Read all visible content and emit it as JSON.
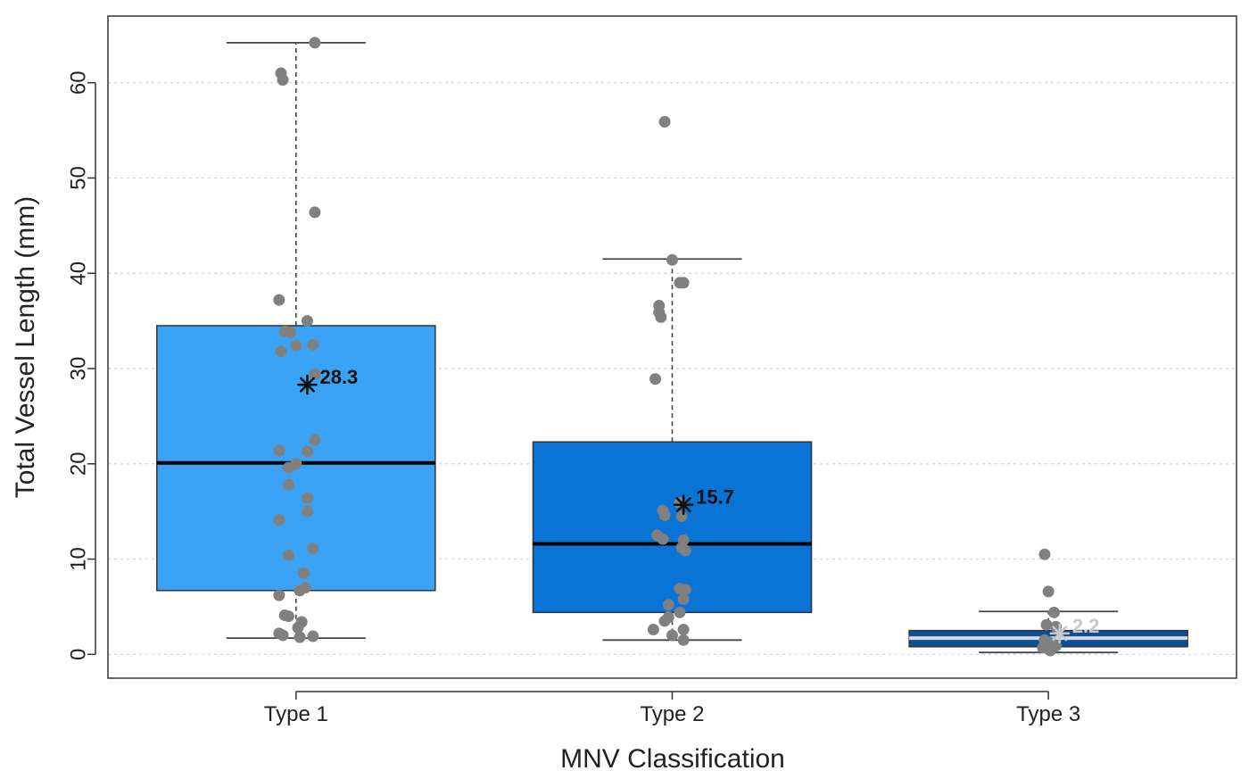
{
  "chart_data": {
    "type": "boxplot",
    "xlabel": "MNV Classification",
    "ylabel": "Total Vessel Length (mm)",
    "ylim": [
      -2.5,
      67
    ],
    "yticks": [
      0,
      10,
      20,
      30,
      40,
      50,
      60
    ],
    "grid": "horizontal dotted",
    "categories": [
      "Type 1",
      "Type 2",
      "Type 3"
    ],
    "colors": {
      "box_fills": [
        "#3aa3f5",
        "#0a73d6",
        "#0a4f98"
      ],
      "points": "#808080",
      "frame": "#333333",
      "grid": "#d4d4d4"
    },
    "boxes": [
      {
        "name": "Type 1",
        "whisker_low": 1.7,
        "q1": 6.7,
        "median": 20.1,
        "q3": 34.5,
        "whisker_high": 64.2,
        "mean": 28.3,
        "mean_label": "28.3",
        "mean_color": "#111111",
        "points": [
          {
            "dx": 0.05,
            "y": 64.2
          },
          {
            "dx": -0.04,
            "y": 61.0
          },
          {
            "dx": -0.035,
            "y": 60.3
          },
          {
            "dx": 0.05,
            "y": 46.4
          },
          {
            "dx": -0.045,
            "y": 37.2
          },
          {
            "dx": 0.03,
            "y": 35.0
          },
          {
            "dx": -0.03,
            "y": 33.9
          },
          {
            "dx": -0.015,
            "y": 33.8
          },
          {
            "dx": 0.0,
            "y": 32.4
          },
          {
            "dx": 0.045,
            "y": 32.5
          },
          {
            "dx": -0.04,
            "y": 31.8
          },
          {
            "dx": 0.05,
            "y": 29.4
          },
          {
            "dx": 0.05,
            "y": 22.5
          },
          {
            "dx": -0.045,
            "y": 21.4
          },
          {
            "dx": 0.03,
            "y": 21.3
          },
          {
            "dx": 0.0,
            "y": 20.0
          },
          {
            "dx": -0.02,
            "y": 19.6
          },
          {
            "dx": -0.02,
            "y": 17.8
          },
          {
            "dx": 0.03,
            "y": 16.4
          },
          {
            "dx": 0.03,
            "y": 15.0
          },
          {
            "dx": -0.045,
            "y": 14.1
          },
          {
            "dx": 0.045,
            "y": 11.1
          },
          {
            "dx": -0.02,
            "y": 10.4
          },
          {
            "dx": 0.02,
            "y": 8.5
          },
          {
            "dx": 0.025,
            "y": 7.0
          },
          {
            "dx": 0.01,
            "y": 6.7
          },
          {
            "dx": -0.045,
            "y": 6.2
          },
          {
            "dx": -0.03,
            "y": 4.1
          },
          {
            "dx": -0.02,
            "y": 4.0
          },
          {
            "dx": 0.015,
            "y": 3.4
          },
          {
            "dx": 0.005,
            "y": 2.8
          },
          {
            "dx": -0.045,
            "y": 2.2
          },
          {
            "dx": -0.035,
            "y": 2.0
          },
          {
            "dx": 0.01,
            "y": 1.8
          },
          {
            "dx": 0.045,
            "y": 1.9
          }
        ]
      },
      {
        "name": "Type 2",
        "whisker_low": 1.5,
        "q1": 4.4,
        "median": 11.6,
        "q3": 22.3,
        "whisker_high": 41.5,
        "mean": 15.7,
        "mean_label": "15.7",
        "mean_color": "#111111",
        "points": [
          {
            "dx": -0.02,
            "y": 55.9
          },
          {
            "dx": 0.0,
            "y": 41.4
          },
          {
            "dx": 0.02,
            "y": 39.0
          },
          {
            "dx": 0.03,
            "y": 39.0
          },
          {
            "dx": -0.035,
            "y": 36.6
          },
          {
            "dx": -0.035,
            "y": 35.9
          },
          {
            "dx": -0.03,
            "y": 35.4
          },
          {
            "dx": -0.045,
            "y": 28.9
          },
          {
            "dx": 0.02,
            "y": 15.9
          },
          {
            "dx": -0.025,
            "y": 15.1
          },
          {
            "dx": -0.02,
            "y": 14.6
          },
          {
            "dx": 0.025,
            "y": 14.5
          },
          {
            "dx": -0.04,
            "y": 12.5
          },
          {
            "dx": -0.025,
            "y": 12.1
          },
          {
            "dx": 0.03,
            "y": 12.0
          },
          {
            "dx": 0.025,
            "y": 11.2
          },
          {
            "dx": 0.035,
            "y": 10.9
          },
          {
            "dx": 0.02,
            "y": 6.9
          },
          {
            "dx": 0.035,
            "y": 6.8
          },
          {
            "dx": 0.03,
            "y": 5.8
          },
          {
            "dx": -0.01,
            "y": 5.2
          },
          {
            "dx": 0.02,
            "y": 4.4
          },
          {
            "dx": -0.01,
            "y": 3.9
          },
          {
            "dx": -0.02,
            "y": 3.5
          },
          {
            "dx": -0.05,
            "y": 2.6
          },
          {
            "dx": 0.03,
            "y": 2.6
          },
          {
            "dx": 0.0,
            "y": 2.0
          },
          {
            "dx": 0.03,
            "y": 1.5
          }
        ]
      },
      {
        "name": "Type 3",
        "whisker_low": 0.2,
        "q1": 0.8,
        "median": 1.7,
        "q3": 2.5,
        "whisker_high": 4.5,
        "mean": 2.2,
        "mean_label": "2.2",
        "mean_color": "#c8c8c8",
        "points": [
          {
            "dx": -0.01,
            "y": 10.5
          },
          {
            "dx": 0.0,
            "y": 6.6
          },
          {
            "dx": 0.015,
            "y": 4.4
          },
          {
            "dx": -0.005,
            "y": 3.1
          },
          {
            "dx": 0.02,
            "y": 2.9
          },
          {
            "dx": -0.01,
            "y": 1.5
          },
          {
            "dx": 0.0,
            "y": 1.3
          },
          {
            "dx": 0.01,
            "y": 1.1
          },
          {
            "dx": 0.02,
            "y": 0.9
          },
          {
            "dx": -0.015,
            "y": 0.7
          },
          {
            "dx": 0.005,
            "y": 0.4
          }
        ]
      }
    ]
  }
}
